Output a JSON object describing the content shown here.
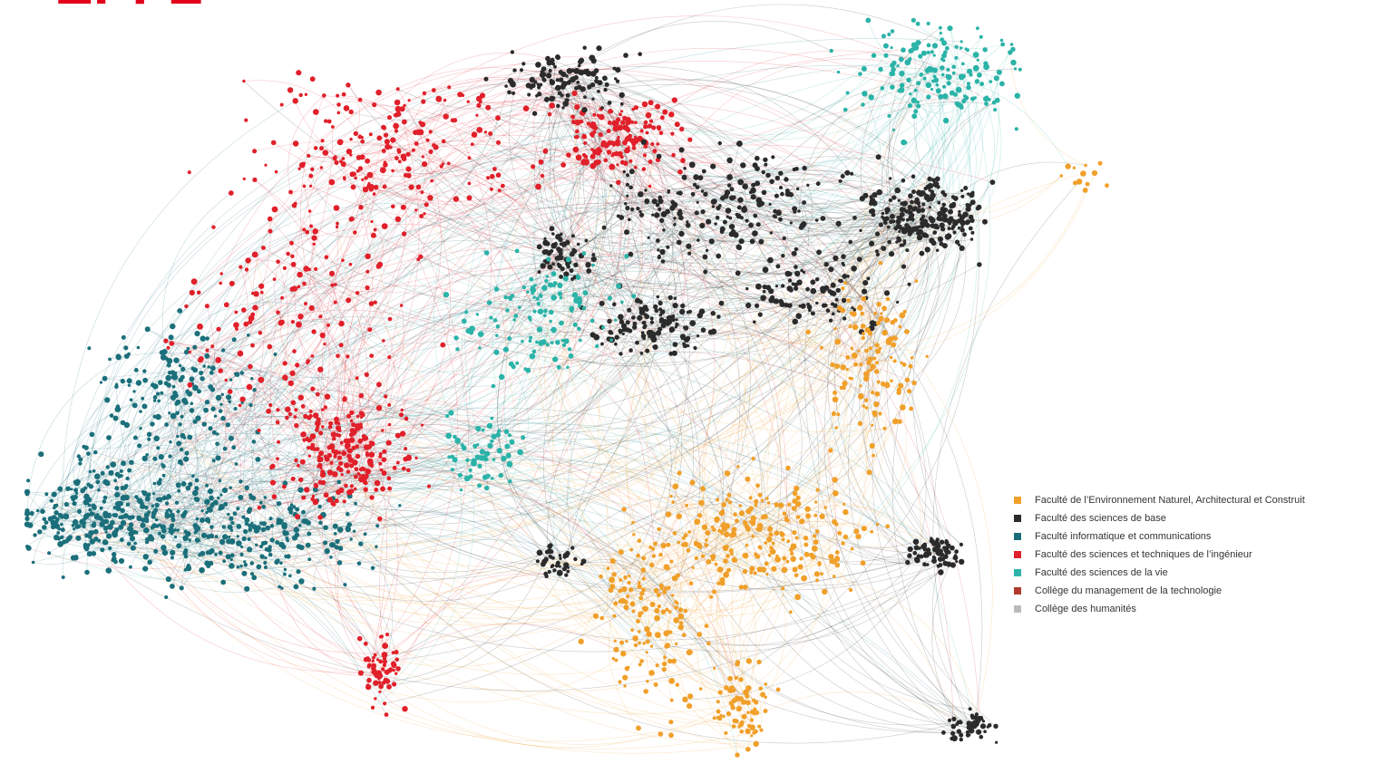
{
  "logo": "EPFL",
  "legend": [
    {
      "label": "Faculté de l’Environnement Naturel, Architectural et Construit",
      "color": "#f0a02a"
    },
    {
      "label": "Faculté des sciences de base",
      "color": "#2b2b2b"
    },
    {
      "label": "Faculté informatique et communications",
      "color": "#1b6f7a"
    },
    {
      "label": "Faculté des sciences et techniques de l’ingénieur",
      "color": "#e0202a"
    },
    {
      "label": "Faculté des sciences de la vie",
      "color": "#2bb3a8"
    },
    {
      "label": "Collège du management de la technologie",
      "color": "#b03a2e"
    },
    {
      "label": "Collège des humanités",
      "color": "#bbbbbb"
    }
  ]
}
